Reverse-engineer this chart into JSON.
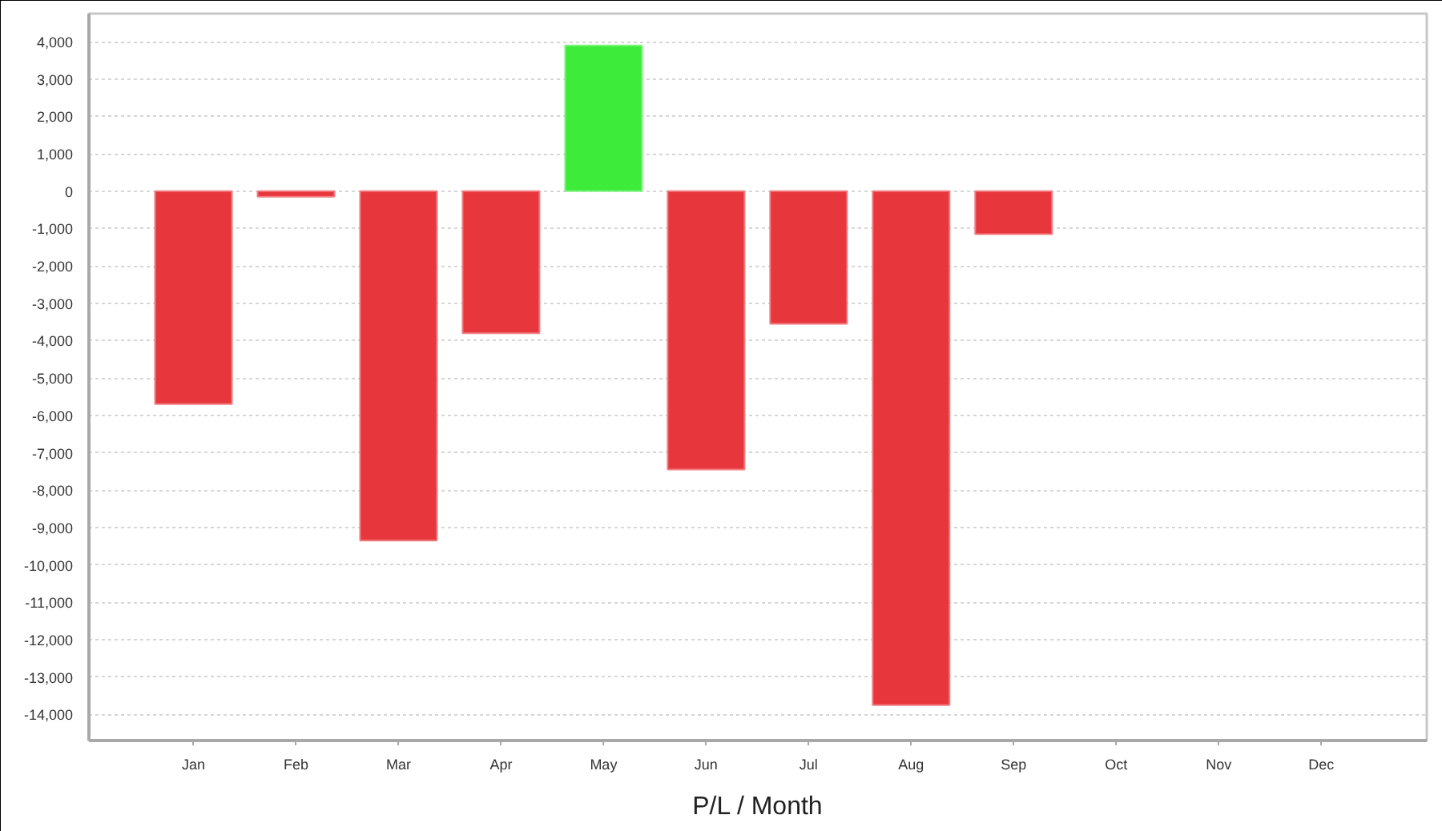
{
  "chart_data": {
    "type": "bar",
    "categories": [
      "Jan",
      "Feb",
      "Mar",
      "Apr",
      "May",
      "Jun",
      "Jul",
      "Aug",
      "Sep",
      "Oct",
      "Nov",
      "Dec"
    ],
    "values": [
      -5700,
      -150,
      -9350,
      -3800,
      3900,
      -7450,
      -3550,
      -13750,
      -1150,
      null,
      null,
      null
    ],
    "colors": [
      "#e8373c",
      "#e8373c",
      "#e8373c",
      "#e8373c",
      "#3deb3a",
      "#e8373c",
      "#e8373c",
      "#e8373c",
      "#e8373c",
      null,
      null,
      null
    ],
    "xlabel": "P/L / Month",
    "ylim": [
      -14700,
      4750
    ],
    "yticks": [
      {
        "value": -14000,
        "label": "-14,000"
      },
      {
        "value": -13000,
        "label": "-13,000"
      },
      {
        "value": -12000,
        "label": "-12,000"
      },
      {
        "value": -11000,
        "label": "-11,000"
      },
      {
        "value": -10000,
        "label": "-10,000"
      },
      {
        "value": -9000,
        "label": "-9,000"
      },
      {
        "value": -8000,
        "label": "-8,000"
      },
      {
        "value": -7000,
        "label": "-7,000"
      },
      {
        "value": -6000,
        "label": "-6,000"
      },
      {
        "value": -5000,
        "label": "-5,000"
      },
      {
        "value": -4000,
        "label": "-4,000"
      },
      {
        "value": -3000,
        "label": "-3,000"
      },
      {
        "value": -2000,
        "label": "-2,000"
      },
      {
        "value": -1000,
        "label": "-1,000"
      },
      0,
      {
        "value": 1000,
        "label": "1,000"
      },
      {
        "value": 2000,
        "label": "2,000"
      },
      {
        "value": 3000,
        "label": "3,000"
      },
      {
        "value": 4000,
        "label": "4,000"
      }
    ],
    "grid": "y"
  }
}
